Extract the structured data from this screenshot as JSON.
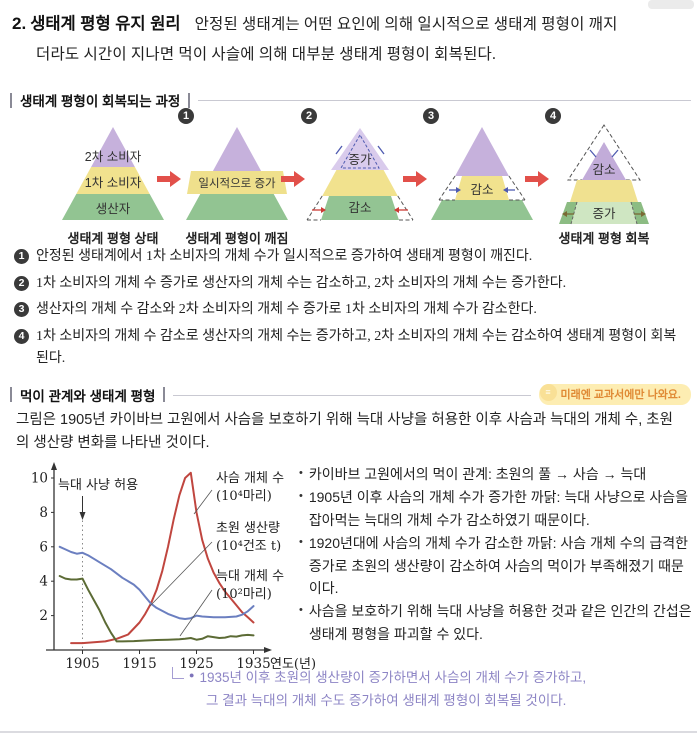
{
  "page": {
    "title_number": "2.",
    "title": "생태계 평형 유지 원리",
    "intro_line1": "안정된 생태계는 어떤 요인에 의해 일시적으로 생태계 평형이 깨지",
    "intro_line2": "더라도 시간이 지나면 먹이 사슬에 의해 대부분 생태계 평형이 회복된다."
  },
  "section1": {
    "header": "생태계 평형이 회복되는 과정",
    "pyramids": {
      "p1": {
        "top": "2차 소비자",
        "middle": "1차 소비자",
        "bottom": "생산자",
        "caption": "생태계 평형 상태"
      },
      "p2": {
        "number": "1",
        "middle": "일시적으로 증가",
        "caption": "생태계 평형이 깨짐"
      },
      "p3": {
        "number": "2",
        "top": "증가",
        "bottom": "감소"
      },
      "p4": {
        "number": "3",
        "middle": "감소"
      },
      "p5": {
        "number": "4",
        "top": "감소",
        "bottom": "증가",
        "caption": "생태계 평형 회복"
      }
    },
    "steps": [
      {
        "marker": "1",
        "text": "안정된 생태계에서 1차 소비자의 개체 수가 일시적으로 증가하여 생태계 평형이 깨진다."
      },
      {
        "marker": "2",
        "text": "1차 소비자의 개체 수 증가로 생산자의 개체 수는 감소하고, 2차 소비자의 개체 수는 증가한다."
      },
      {
        "marker": "3",
        "text": "생산자의 개체 수 감소와 2차 소비자의 개체 수 증가로 1차 소비자의 개체 수가 감소한다."
      },
      {
        "marker": "4",
        "text": "1차 소비자의 개체 수 감소로 생산자의 개체 수는 증가하고, 2차 소비자의 개체 수는 감소하여 생태계 평형이 회복된다."
      }
    ]
  },
  "section2": {
    "header": "먹이 관계와 생태계 평형",
    "badge": "미래엔 교과서에만 나와요.",
    "intro": "그림은 1905년 카이바브 고원에서 사슴을 보호하기 위해 늑대 사냥을 허용한 이후 사슴과 늑대의 개체 수, 초원의 생산량 변화를 나타낸 것이다.",
    "bullets": [
      "카이바브 고원에서의 먹이 관계: 초원의 풀 → 사슴 → 늑대",
      "1905년 이후 사슴의 개체 수가 증가한 까닭: 늑대 사냥으로 사슴을 잡아먹는 늑대의 개체 수가 감소하였기 때문이다.",
      "1920년대에 사슴의 개체 수가 감소한 까닭: 사슴 개체 수의 급격한 증가로 초원의 생산량이 감소하여 사슴의 먹이가 부족해졌기 때문이다.",
      "사슴을 보호하기 위해 늑대 사냥을 허용한 것과 같은 인간의 간섭은 생태계 평형을 파괴할 수 있다."
    ],
    "note_line1": "1935년 이후 초원의 생산량이 증가하면서 사슴의 개체 수가 증가하고,",
    "note_line2": "그 결과 늑대의 개체 수도 증가하여 생태계 평형이 회복될 것이다."
  },
  "chart_data": {
    "type": "line",
    "title": "",
    "xlabel": "연도(년)",
    "ylabel": "",
    "xlim": [
      1900,
      1936
    ],
    "ylim": [
      0,
      10.5
    ],
    "x_ticks": [
      1905,
      1915,
      1925,
      1935
    ],
    "y_ticks": [
      2,
      4,
      6,
      8,
      10
    ],
    "grid": false,
    "legend_position": "right",
    "annotation": "늑대 사냥 허용",
    "annotation_x": 1905,
    "series": [
      {
        "name": "사슴 개체 수 (10⁴마리)",
        "label_line1": "사슴 개체 수",
        "label_line2": "(10⁴마리)",
        "color": "#c0463f",
        "x": [
          1903,
          1905,
          1907,
          1909,
          1911,
          1913,
          1915,
          1916,
          1917,
          1918,
          1919,
          1920,
          1921,
          1922,
          1923,
          1924,
          1925,
          1926,
          1927,
          1928,
          1929,
          1930,
          1931,
          1932,
          1933,
          1934,
          1935
        ],
        "y": [
          0.4,
          0.4,
          0.45,
          0.5,
          0.65,
          0.9,
          1.6,
          2.1,
          2.7,
          3.5,
          4.6,
          6.0,
          7.6,
          9.0,
          10.0,
          10.3,
          8.0,
          6.4,
          5.3,
          4.5,
          3.9,
          3.4,
          3.0,
          2.6,
          2.2,
          1.9,
          1.6
        ]
      },
      {
        "name": "초원 생산량 (10⁴건조 t)",
        "label_line1": "초원 생산량",
        "label_line2": "(10⁴건조 t)",
        "color": "#6b7fc0",
        "x": [
          1901,
          1902,
          1903,
          1904,
          1905,
          1906,
          1907,
          1908,
          1910,
          1912,
          1914,
          1915,
          1916,
          1917,
          1918,
          1920,
          1922,
          1923,
          1924,
          1925,
          1926,
          1928,
          1930,
          1932,
          1933,
          1934,
          1935
        ],
        "y": [
          6.0,
          5.85,
          5.7,
          5.6,
          5.65,
          5.5,
          5.3,
          5.1,
          4.7,
          4.2,
          3.8,
          3.5,
          3.1,
          2.7,
          2.45,
          2.1,
          1.85,
          1.8,
          1.85,
          2.0,
          1.95,
          1.9,
          1.9,
          1.95,
          2.05,
          2.25,
          2.55
        ]
      },
      {
        "name": "늑대 개체 수 (10²마리)",
        "label_line1": "늑대 개체 수",
        "label_line2": "(10²마리)",
        "color": "#5c6b35",
        "x": [
          1901,
          1902,
          1903,
          1904,
          1905,
          1906,
          1907,
          1908,
          1909,
          1910,
          1911,
          1912,
          1914,
          1916,
          1918,
          1920,
          1922,
          1923,
          1924,
          1925,
          1926,
          1927,
          1928,
          1929,
          1930,
          1931,
          1932,
          1933,
          1934,
          1935
        ],
        "y": [
          4.3,
          4.15,
          4.1,
          4.1,
          4.15,
          3.5,
          2.9,
          2.3,
          1.6,
          1.0,
          0.5,
          0.5,
          0.52,
          0.55,
          0.58,
          0.6,
          0.62,
          0.65,
          0.7,
          0.6,
          0.65,
          0.8,
          0.75,
          0.7,
          0.72,
          0.8,
          0.78,
          0.85,
          0.88,
          0.85
        ]
      }
    ]
  }
}
